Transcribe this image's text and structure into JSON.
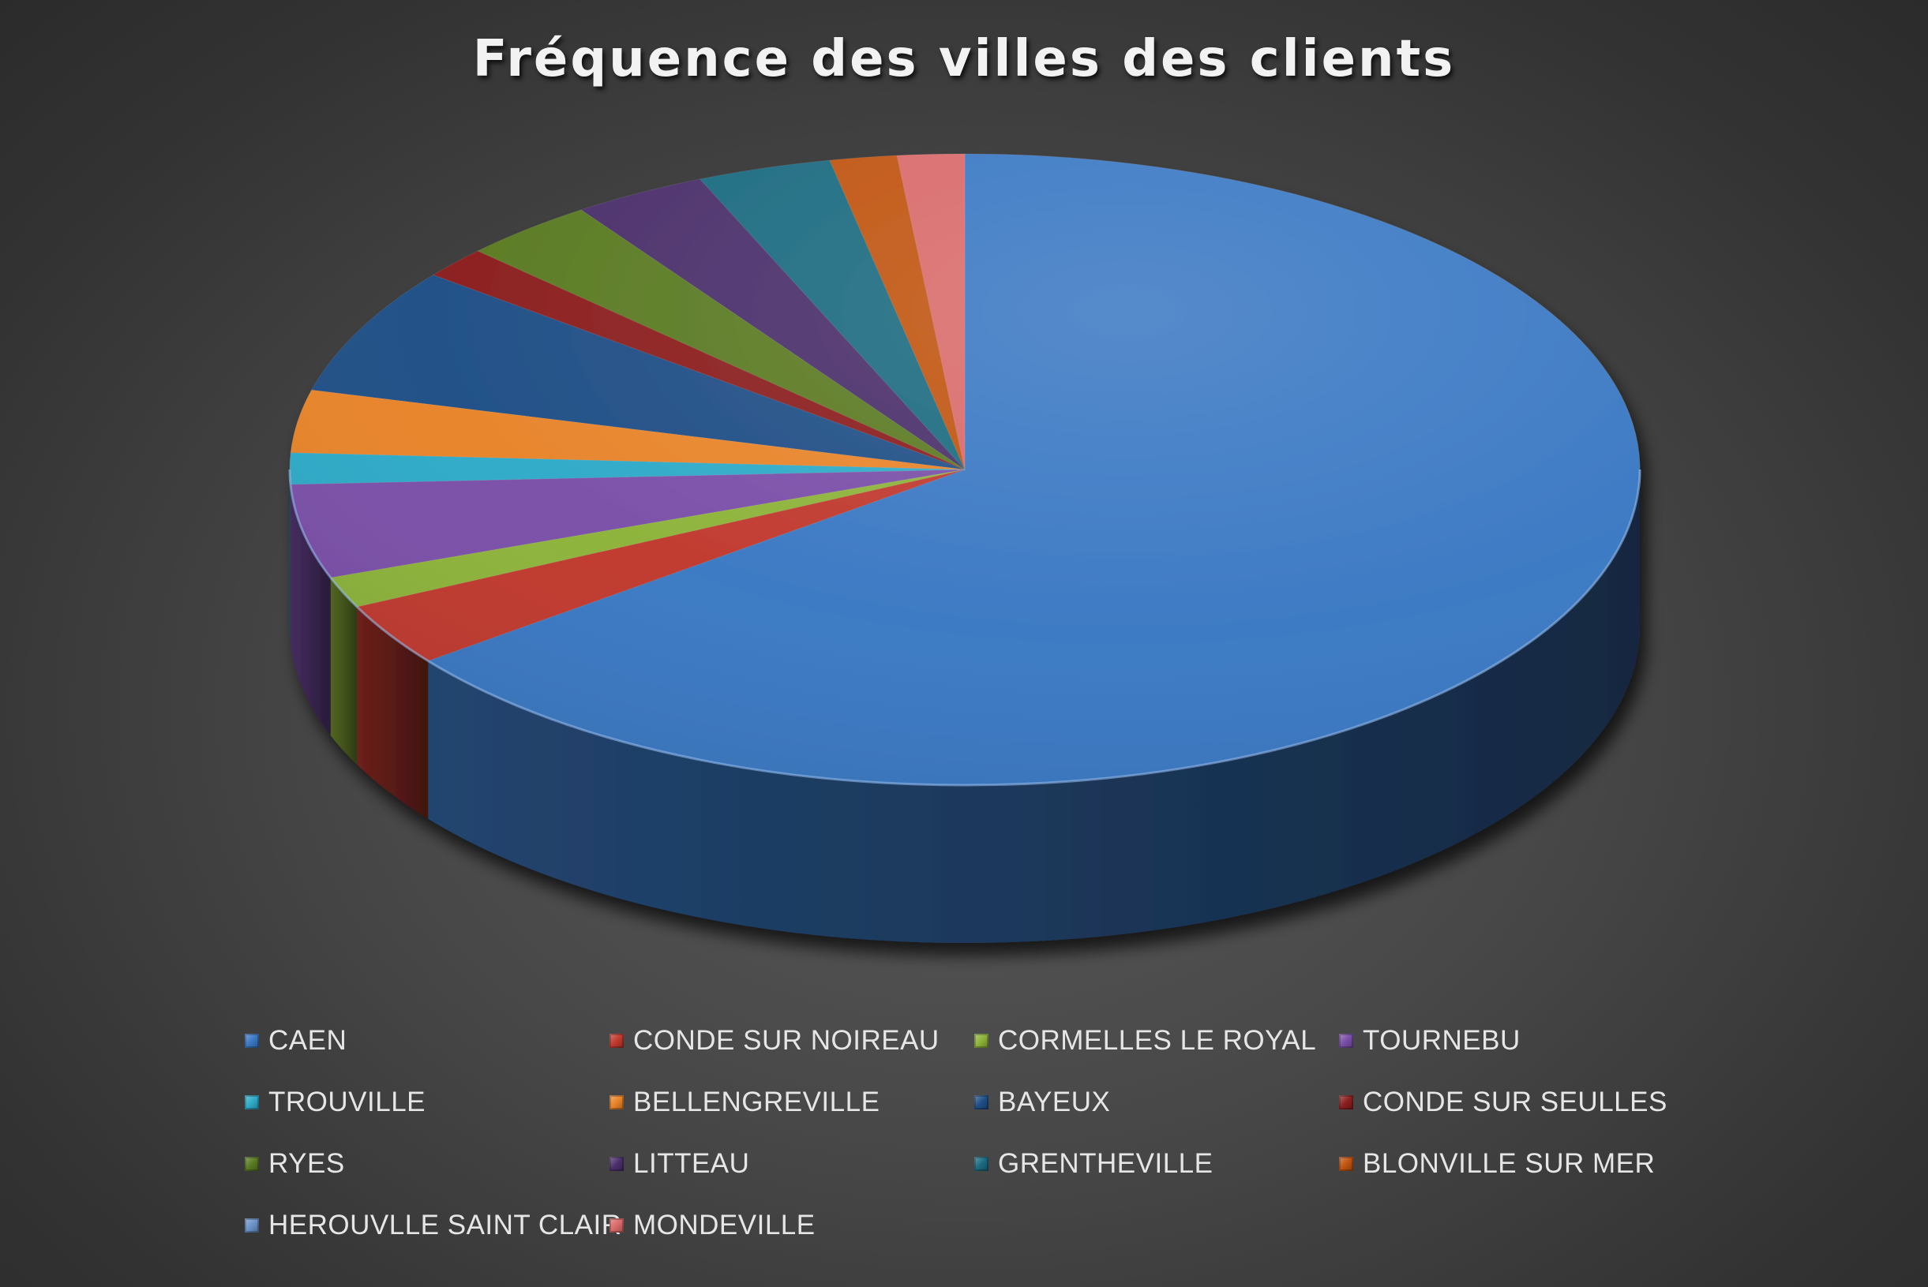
{
  "chart_data": {
    "type": "pie",
    "style": "3d",
    "title": "Fréquence des villes des clients",
    "legend_position": "bottom",
    "categories": [
      "CAEN",
      "CONDE SUR NOIREAU",
      "CORMELLES LE ROYAL",
      "TOURNEBU",
      "TROUVILLE",
      "BELLENGREVILLE",
      "BAYEUX",
      "CONDE SUR SEULLES",
      "RYES",
      "LITTEAU",
      "GRENTHEVILLE",
      "BLONVILLE SUR MER",
      "HEROUVLLE SAINT CLAIR",
      "MONDEVILLE"
    ],
    "values": [
      64.5,
      3.2,
      1.6,
      4.8,
      1.6,
      3.2,
      6.5,
      1.6,
      3.2,
      3.2,
      3.2,
      1.6,
      0.0,
      1.6
    ],
    "colors": [
      "#3a78c3",
      "#c0392e",
      "#8db33a",
      "#7a4fa8",
      "#2eaac8",
      "#e8842a",
      "#1f4e86",
      "#8b1e1e",
      "#5a7a22",
      "#4a2f6a",
      "#1b6a80",
      "#c05410",
      "#6b93c9",
      "#d96a6a"
    ]
  }
}
